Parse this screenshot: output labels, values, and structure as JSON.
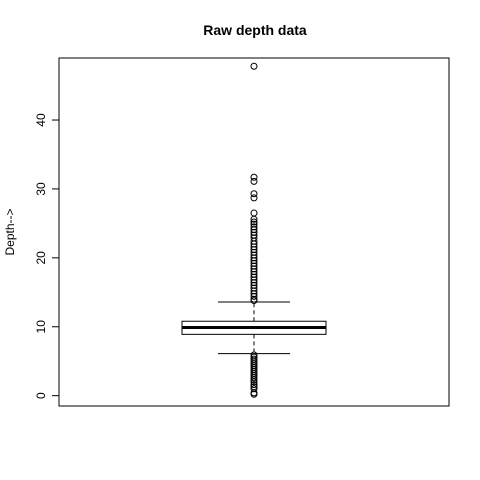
{
  "chart_data": {
    "type": "box",
    "title": "Raw depth data",
    "xlabel": "",
    "ylabel": "Depth-->",
    "ylim": [
      -1.5,
      49
    ],
    "yticks": [
      0,
      10,
      20,
      30,
      40
    ],
    "grid": false,
    "legend": "none",
    "box": {
      "whisker_low": 6.1,
      "q1": 8.9,
      "median": 9.9,
      "q3": 10.8,
      "whisker_high": 13.6
    },
    "outliers": [
      47.8,
      31.7,
      31.1,
      29.3,
      28.7,
      26.5,
      25.6,
      25.2,
      24.9,
      24.5,
      24.1,
      23.7,
      23.3,
      22.9,
      22.4,
      22.0,
      21.6,
      21.2,
      20.8,
      20.4,
      20.0,
      19.6,
      19.2,
      18.8,
      18.4,
      18.0,
      17.6,
      17.2,
      16.8,
      16.4,
      16.0,
      15.6,
      15.2,
      14.8,
      14.4,
      14.0,
      13.8,
      5.9,
      5.6,
      5.3,
      5.0,
      4.7,
      4.4,
      4.1,
      3.8,
      3.5,
      3.2,
      2.9,
      2.6,
      2.3,
      2.0,
      1.6,
      1.3,
      1.0,
      0.4,
      0.2
    ]
  }
}
